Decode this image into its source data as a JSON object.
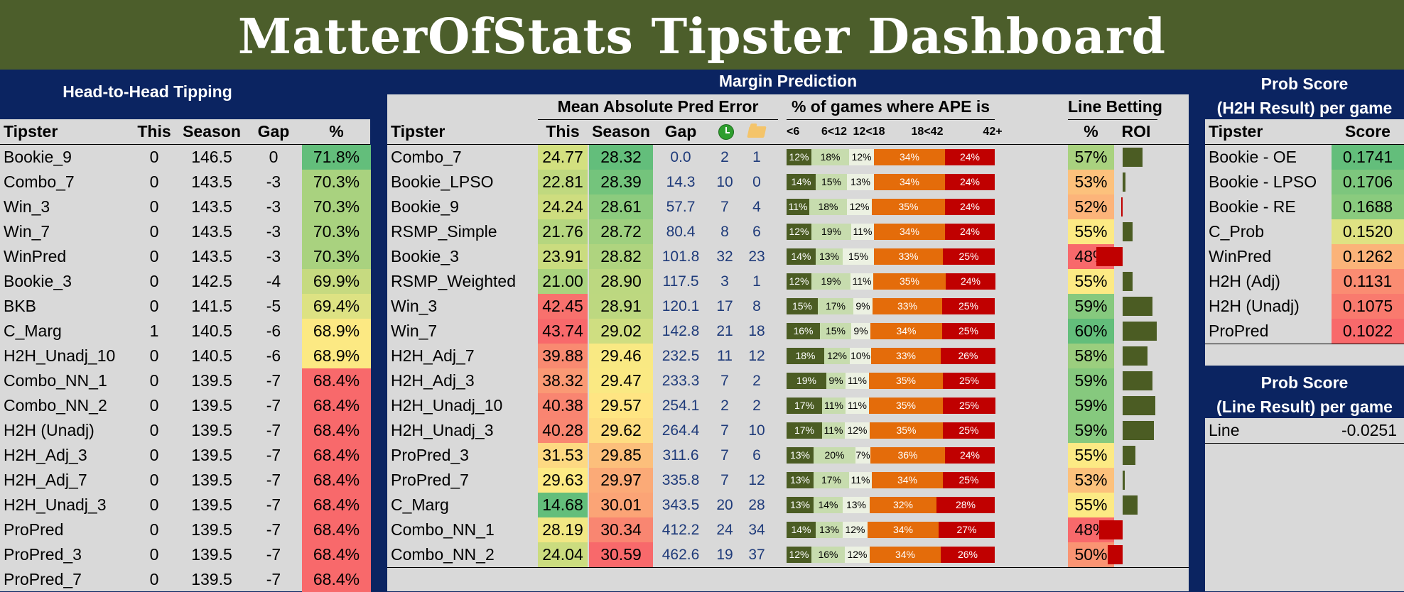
{
  "title": "MatterOfStats Tipster Dashboard",
  "colors": {
    "banner": "#4c5e2b",
    "navy": "#0b2461",
    "panel": "#d9d9d9",
    "olive": "#4b5c23",
    "lightgreen": "#c7dcae",
    "orange": "#e46c0a",
    "red": "#c00000"
  },
  "h2h": {
    "title": "Head-to-Head Tipping",
    "headers": {
      "tipster": "Tipster",
      "this": "This",
      "season": "Season",
      "gap": "Gap",
      "pct": "%"
    },
    "rows": [
      {
        "tipster": "Bookie_9",
        "this": "0",
        "season": "146.5",
        "gap": "0",
        "pct": "71.8%",
        "color": "#63be7b"
      },
      {
        "tipster": "Combo_7",
        "this": "0",
        "season": "143.5",
        "gap": "-3",
        "pct": "70.3%",
        "color": "#a9d27f"
      },
      {
        "tipster": "Win_3",
        "this": "0",
        "season": "143.5",
        "gap": "-3",
        "pct": "70.3%",
        "color": "#a9d27f"
      },
      {
        "tipster": "Win_7",
        "this": "0",
        "season": "143.5",
        "gap": "-3",
        "pct": "70.3%",
        "color": "#a9d27f"
      },
      {
        "tipster": "WinPred",
        "this": "0",
        "season": "143.5",
        "gap": "-3",
        "pct": "70.3%",
        "color": "#a9d27f"
      },
      {
        "tipster": "Bookie_3",
        "this": "0",
        "season": "142.5",
        "gap": "-4",
        "pct": "69.9%",
        "color": "#c6da80"
      },
      {
        "tipster": "BKB",
        "this": "0",
        "season": "141.5",
        "gap": "-5",
        "pct": "69.4%",
        "color": "#dde283"
      },
      {
        "tipster": "C_Marg",
        "this": "1",
        "season": "140.5",
        "gap": "-6",
        "pct": "68.9%",
        "color": "#fce983"
      },
      {
        "tipster": "H2H_Unadj_10",
        "this": "0",
        "season": "140.5",
        "gap": "-6",
        "pct": "68.9%",
        "color": "#fce983"
      },
      {
        "tipster": "Combo_NN_1",
        "this": "0",
        "season": "139.5",
        "gap": "-7",
        "pct": "68.4%",
        "color": "#f8696b"
      },
      {
        "tipster": "Combo_NN_2",
        "this": "0",
        "season": "139.5",
        "gap": "-7",
        "pct": "68.4%",
        "color": "#f8696b"
      },
      {
        "tipster": "H2H (Unadj)",
        "this": "0",
        "season": "139.5",
        "gap": "-7",
        "pct": "68.4%",
        "color": "#f8696b"
      },
      {
        "tipster": "H2H_Adj_3",
        "this": "0",
        "season": "139.5",
        "gap": "-7",
        "pct": "68.4%",
        "color": "#f8696b"
      },
      {
        "tipster": "H2H_Adj_7",
        "this": "0",
        "season": "139.5",
        "gap": "-7",
        "pct": "68.4%",
        "color": "#f8696b"
      },
      {
        "tipster": "H2H_Unadj_3",
        "this": "0",
        "season": "139.5",
        "gap": "-7",
        "pct": "68.4%",
        "color": "#f8696b"
      },
      {
        "tipster": "ProPred",
        "this": "0",
        "season": "139.5",
        "gap": "-7",
        "pct": "68.4%",
        "color": "#f8696b"
      },
      {
        "tipster": "ProPred_3",
        "this": "0",
        "season": "139.5",
        "gap": "-7",
        "pct": "68.4%",
        "color": "#f8696b"
      },
      {
        "tipster": "ProPred_7",
        "this": "0",
        "season": "139.5",
        "gap": "-7",
        "pct": "68.4%",
        "color": "#f8696b"
      }
    ]
  },
  "margin": {
    "title": "Margin Prediction",
    "mape_title": "Mean Absolute Pred Error",
    "ape_title": "% of games where APE is",
    "line_title": "Line Betting",
    "headers": {
      "tipster": "Tipster",
      "this": "This",
      "season": "Season",
      "gap": "Gap",
      "lt6": "<6",
      "b6_12": "6<12",
      "b12_18": "12<18",
      "b18_42": "18<42",
      "gt42": "42+",
      "pct": "%",
      "roi": "ROI"
    },
    "icons": {
      "clock": "clock-icon",
      "folder": "folder-icon"
    },
    "rows": [
      {
        "tipster": "Combo_7",
        "this": "24.77",
        "this_color": "#d3e07f",
        "season": "28.32",
        "season_color": "#63be7b",
        "gap": "0.0",
        "c1": "2",
        "c2": "1",
        "ape": [
          "12%",
          "18%",
          "12%",
          "34%",
          "24%"
        ],
        "ape_v": [
          12,
          18,
          12,
          34,
          24
        ],
        "pct": "57%",
        "pct_color": "#a9d27f",
        "roi": 0.32
      },
      {
        "tipster": "Bookie_LPSO",
        "this": "22.81",
        "this_color": "#c0d97f",
        "season": "28.39",
        "season_color": "#74c47c",
        "gap": "14.3",
        "c1": "10",
        "c2": "0",
        "ape": [
          "14%",
          "15%",
          "13%",
          "34%",
          "24%"
        ],
        "ape_v": [
          14,
          15,
          13,
          34,
          24
        ],
        "pct": "53%",
        "pct_color": "#fcc17c",
        "roi": 0.04
      },
      {
        "tipster": "Bookie_9",
        "this": "24.24",
        "this_color": "#cedd7f",
        "season": "28.61",
        "season_color": "#8ccb7e",
        "gap": "57.7",
        "c1": "7",
        "c2": "4",
        "ape": [
          "11%",
          "18%",
          "12%",
          "35%",
          "24%"
        ],
        "ape_v": [
          11,
          18,
          12,
          35,
          24
        ],
        "pct": "52%",
        "pct_color": "#fcb47a",
        "roi": -0.01
      },
      {
        "tipster": "RSMP_Simple",
        "this": "21.76",
        "this_color": "#b5d67f",
        "season": "28.72",
        "season_color": "#9fd07f",
        "gap": "80.4",
        "c1": "8",
        "c2": "6",
        "ape": [
          "12%",
          "19%",
          "11%",
          "34%",
          "24%"
        ],
        "ape_v": [
          12,
          19,
          11,
          34,
          24
        ],
        "pct": "55%",
        "pct_color": "#fcea84",
        "roi": 0.16
      },
      {
        "tipster": "Bookie_3",
        "this": "23.91",
        "this_color": "#cadc7f",
        "season": "28.82",
        "season_color": "#afd47f",
        "gap": "101.8",
        "c1": "32",
        "c2": "23",
        "ape": [
          "14%",
          "13%",
          "15%",
          "33%",
          "25%"
        ],
        "ape_v": [
          14,
          13,
          15,
          33,
          25
        ],
        "pct": "48%",
        "pct_color": "#f8696b",
        "roi": -0.42
      },
      {
        "tipster": "RSMP_Weighted",
        "this": "21.00",
        "this_color": "#aad37e",
        "season": "28.90",
        "season_color": "#bcd880",
        "gap": "117.5",
        "c1": "3",
        "c2": "1",
        "ape": [
          "12%",
          "19%",
          "11%",
          "35%",
          "24%"
        ],
        "ape_v": [
          12,
          19,
          11,
          35,
          24
        ],
        "pct": "55%",
        "pct_color": "#fcea84",
        "roi": 0.16
      },
      {
        "tipster": "Win_3",
        "this": "42.45",
        "this_color": "#f8716d",
        "season": "28.91",
        "season_color": "#bdd880",
        "gap": "120.1",
        "c1": "17",
        "c2": "8",
        "ape": [
          "15%",
          "17%",
          "9%",
          "33%",
          "25%"
        ],
        "ape_v": [
          15,
          17,
          9,
          33,
          25
        ],
        "pct": "59%",
        "pct_color": "#86c97e",
        "roi": 0.48
      },
      {
        "tipster": "Win_7",
        "this": "43.74",
        "this_color": "#f8696b",
        "season": "29.02",
        "season_color": "#cfde81",
        "gap": "142.8",
        "c1": "21",
        "c2": "18",
        "ape": [
          "16%",
          "15%",
          "9%",
          "34%",
          "25%"
        ],
        "ape_v": [
          16,
          15,
          9,
          34,
          25
        ],
        "pct": "60%",
        "pct_color": "#63be7b",
        "roi": 0.55
      },
      {
        "tipster": "H2H_Adj_7",
        "this": "39.88",
        "this_color": "#f98a71",
        "season": "29.46",
        "season_color": "#f9e983",
        "gap": "232.5",
        "c1": "11",
        "c2": "12",
        "ape": [
          "18%",
          "12%",
          "10%",
          "33%",
          "26%"
        ],
        "ape_v": [
          18,
          12,
          10,
          33,
          26
        ],
        "pct": "58%",
        "pct_color": "#9bce7e",
        "roi": 0.4
      },
      {
        "tipster": "H2H_Adj_3",
        "this": "38.32",
        "this_color": "#fa9974",
        "season": "29.47",
        "season_color": "#fae983",
        "gap": "233.3",
        "c1": "7",
        "c2": "2",
        "ape": [
          "19%",
          "9%",
          "11%",
          "35%",
          "25%"
        ],
        "ape_v": [
          19,
          9,
          11,
          35,
          25
        ],
        "pct": "59%",
        "pct_color": "#86c97e",
        "roi": 0.48
      },
      {
        "tipster": "H2H_Unadj_10",
        "this": "40.38",
        "this_color": "#f98571",
        "season": "29.57",
        "season_color": "#ffe583",
        "gap": "254.1",
        "c1": "2",
        "c2": "2",
        "ape": [
          "17%",
          "11%",
          "11%",
          "35%",
          "25%"
        ],
        "ape_v": [
          17,
          11,
          11,
          35,
          25
        ],
        "pct": "59%",
        "pct_color": "#86c97e",
        "roi": 0.52
      },
      {
        "tipster": "H2H_Unadj_3",
        "this": "40.28",
        "this_color": "#f98671",
        "season": "29.62",
        "season_color": "#fedd81",
        "gap": "264.4",
        "c1": "7",
        "c2": "10",
        "ape": [
          "17%",
          "11%",
          "12%",
          "35%",
          "25%"
        ],
        "ape_v": [
          17,
          11,
          12,
          35,
          25
        ],
        "pct": "59%",
        "pct_color": "#86c97e",
        "roi": 0.5
      },
      {
        "tipster": "ProPred_3",
        "this": "31.53",
        "this_color": "#fdd982",
        "season": "29.85",
        "season_color": "#fcbf7b",
        "gap": "311.6",
        "c1": "7",
        "c2": "6",
        "ape": [
          "13%",
          "20%",
          "7%",
          "36%",
          "24%"
        ],
        "ape_v": [
          13,
          20,
          7,
          36,
          24
        ],
        "pct": "55%",
        "pct_color": "#fcea84",
        "roi": 0.2
      },
      {
        "tipster": "ProPred_7",
        "this": "29.63",
        "this_color": "#fdea84",
        "season": "29.97",
        "season_color": "#fbaa77",
        "gap": "335.8",
        "c1": "7",
        "c2": "12",
        "ape": [
          "13%",
          "17%",
          "11%",
          "34%",
          "25%"
        ],
        "ape_v": [
          13,
          17,
          11,
          34,
          25
        ],
        "pct": "53%",
        "pct_color": "#fcc17c",
        "roi": 0.03
      },
      {
        "tipster": "C_Marg",
        "this": "14.68",
        "this_color": "#63be7b",
        "season": "30.01",
        "season_color": "#fba476",
        "gap": "343.5",
        "c1": "20",
        "c2": "28",
        "ape": [
          "13%",
          "14%",
          "13%",
          "32%",
          "28%"
        ],
        "ape_v": [
          13,
          14,
          13,
          32,
          28
        ],
        "pct": "55%",
        "pct_color": "#fcea84",
        "roi": 0.24
      },
      {
        "tipster": "Combo_NN_1",
        "this": "28.19",
        "this_color": "#f1e783",
        "season": "30.34",
        "season_color": "#f98671",
        "gap": "412.2",
        "c1": "24",
        "c2": "34",
        "ape": [
          "14%",
          "13%",
          "12%",
          "34%",
          "27%"
        ],
        "ape_v": [
          14,
          13,
          12,
          34,
          27
        ],
        "pct": "48%",
        "pct_color": "#f8696b",
        "roi": -0.38
      },
      {
        "tipster": "Combo_NN_2",
        "this": "24.04",
        "this_color": "#cbdc7f",
        "season": "30.59",
        "season_color": "#f8696b",
        "gap": "462.6",
        "c1": "19",
        "c2": "37",
        "ape": [
          "12%",
          "16%",
          "12%",
          "34%",
          "26%"
        ],
        "ape_v": [
          12,
          16,
          12,
          34,
          26
        ],
        "pct": "50%",
        "pct_color": "#fa9473",
        "roi": -0.24
      }
    ]
  },
  "prob_h2h": {
    "title1": "Prob Score",
    "title2": "(H2H Result) per game",
    "headers": {
      "tipster": "Tipster",
      "score": "Score"
    },
    "rows": [
      {
        "tipster": "Bookie - OE",
        "score": "0.1741",
        "color": "#63be7b"
      },
      {
        "tipster": "Bookie - LPSO",
        "score": "0.1706",
        "color": "#7dc67d"
      },
      {
        "tipster": "Bookie - RE",
        "score": "0.1688",
        "color": "#8acb7e"
      },
      {
        "tipster": "C_Prob",
        "score": "0.1520",
        "color": "#dfe283"
      },
      {
        "tipster": "WinPred",
        "score": "0.1262",
        "color": "#fbb379"
      },
      {
        "tipster": "H2H (Adj)",
        "score": "0.1131",
        "color": "#fa8c72"
      },
      {
        "tipster": "H2H (Unadj)",
        "score": "0.1075",
        "color": "#f97a6e"
      },
      {
        "tipster": "ProPred",
        "score": "0.1022",
        "color": "#f8696b"
      }
    ]
  },
  "prob_line": {
    "title1": "Prob Score",
    "title2": "(Line Result) per game",
    "rows": [
      {
        "label": "Line",
        "score": "-0.0251"
      }
    ]
  }
}
